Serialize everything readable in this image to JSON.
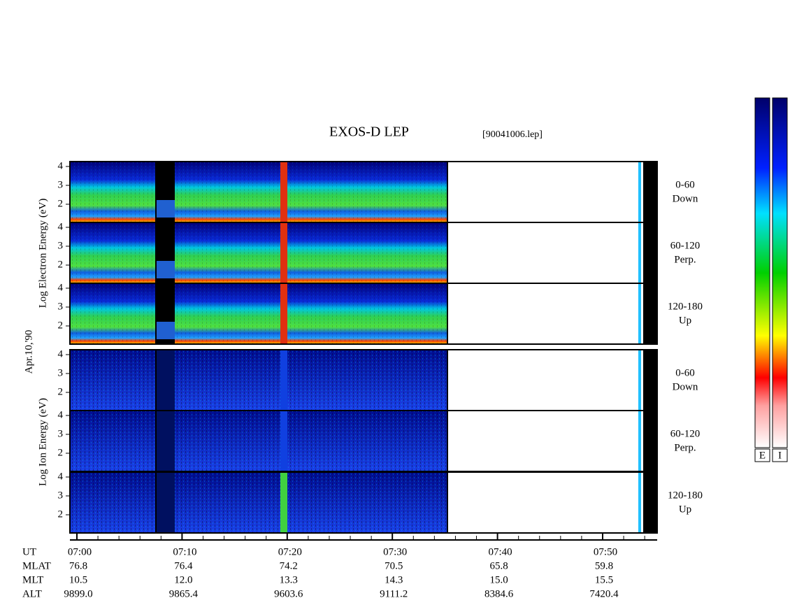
{
  "title": "EXOS-D LEP",
  "file": "[90041006.lep]",
  "date_label": "Apr.10,'90",
  "electron_axis_label": "Log  Electron  Energy (eV)",
  "ion_axis_label": "Log  Ion  Energy (eV)",
  "energy_ticks": [
    2,
    3,
    4
  ],
  "electron_panels": [
    {
      "angle": "0-60",
      "direction": "Down"
    },
    {
      "angle": "60-120",
      "direction": "Perp."
    },
    {
      "angle": "120-180",
      "direction": "Up"
    }
  ],
  "ion_panels": [
    {
      "angle": "0-60",
      "direction": "Down"
    },
    {
      "angle": "60-120",
      "direction": "Perp."
    },
    {
      "angle": "120-180",
      "direction": "Up"
    }
  ],
  "row_labels": [
    "UT",
    "MLAT",
    "MLT",
    "ALT"
  ],
  "columns": [
    [
      "07:00",
      "76.8",
      "10.5",
      "9899.0"
    ],
    [
      "07:10",
      "76.4",
      "12.0",
      "9865.4"
    ],
    [
      "07:20",
      "74.2",
      "13.3",
      "9603.6"
    ],
    [
      "07:30",
      "70.5",
      "14.3",
      "9111.2"
    ],
    [
      "07:40",
      "65.8",
      "15.0",
      "8384.6"
    ],
    [
      "07:50",
      "59.8",
      "15.5",
      "7420.4"
    ]
  ],
  "colorbar_labels": [
    "E",
    "I"
  ]
}
